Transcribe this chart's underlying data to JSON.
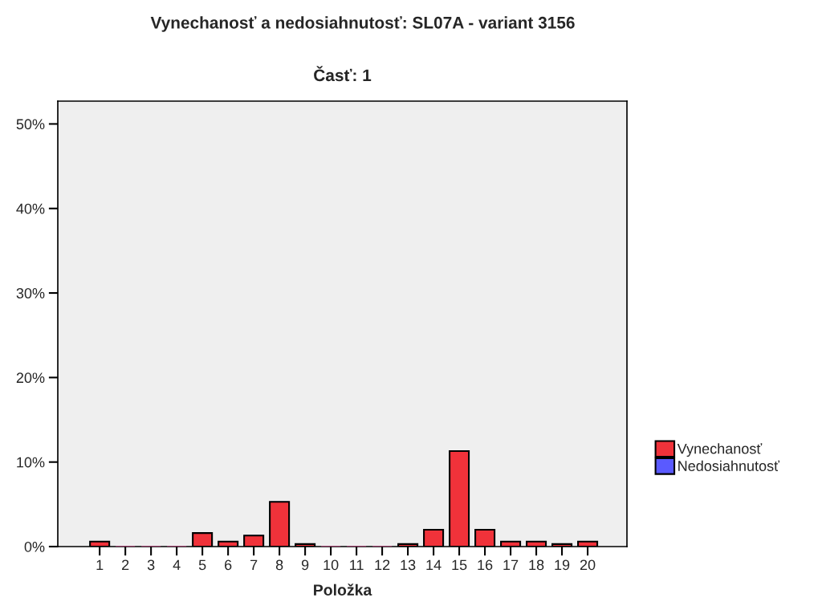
{
  "chart_data": {
    "type": "bar",
    "title": "Vynechanosť a nedosiahnutosť: SL07A - variant 3156",
    "subtitle": "Časť: 1",
    "xlabel": "Položka",
    "categories": [
      "1",
      "2",
      "3",
      "4",
      "5",
      "6",
      "7",
      "8",
      "9",
      "10",
      "11",
      "12",
      "13",
      "14",
      "15",
      "16",
      "17",
      "18",
      "19",
      "20"
    ],
    "series": [
      {
        "name": "Vynechanosť",
        "color": "#f0323a",
        "values": [
          0.6,
          0,
          0,
          0,
          1.6,
          0.6,
          1.3,
          5.3,
          0.3,
          0,
          0,
          0,
          0.3,
          2.0,
          11.3,
          2.0,
          0.6,
          0.6,
          0.3,
          0.6
        ]
      },
      {
        "name": "Nedosiahnutosť",
        "color": "#5a5aff",
        "values": [
          0,
          0,
          0,
          0,
          0,
          0,
          0,
          0,
          0,
          0,
          0,
          0,
          0,
          0,
          0,
          0,
          0,
          0,
          0,
          0
        ]
      }
    ],
    "stacked": true,
    "ylim": [
      0,
      52.7
    ],
    "yticks": [
      {
        "value": 0,
        "label": "0%"
      },
      {
        "value": 10,
        "label": "10%"
      },
      {
        "value": 20,
        "label": "20%"
      },
      {
        "value": 30,
        "label": "30%"
      },
      {
        "value": 40,
        "label": "40%"
      },
      {
        "value": 50,
        "label": "50%"
      }
    ],
    "grid": false,
    "legend": "right"
  }
}
